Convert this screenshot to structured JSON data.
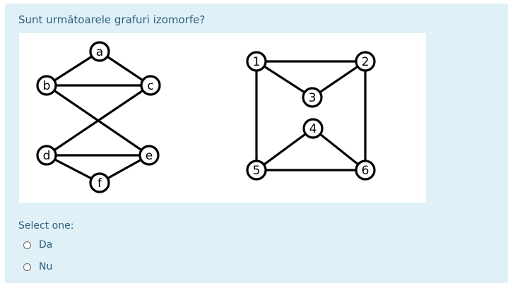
{
  "question": {
    "text": "Sunt următoarele grafuri izomorfe?"
  },
  "figure": {
    "graph_left": {
      "nodes": [
        "a",
        "b",
        "c",
        "d",
        "e",
        "f"
      ],
      "edges": [
        [
          "a",
          "b"
        ],
        [
          "a",
          "c"
        ],
        [
          "b",
          "c"
        ],
        [
          "b",
          "e"
        ],
        [
          "c",
          "d"
        ],
        [
          "d",
          "e"
        ],
        [
          "d",
          "f"
        ],
        [
          "e",
          "f"
        ]
      ]
    },
    "graph_right": {
      "nodes": [
        "1",
        "2",
        "3",
        "4",
        "5",
        "6"
      ],
      "edges": [
        [
          "1",
          "2"
        ],
        [
          "1",
          "3"
        ],
        [
          "2",
          "3"
        ],
        [
          "1",
          "5"
        ],
        [
          "2",
          "6"
        ],
        [
          "4",
          "5"
        ],
        [
          "4",
          "6"
        ],
        [
          "5",
          "6"
        ]
      ]
    }
  },
  "answer": {
    "select_label": "Select one:",
    "options": [
      {
        "label": "Da",
        "selected": false
      },
      {
        "label": "Nu",
        "selected": false
      }
    ]
  },
  "colors": {
    "card_background": "#e0f0f7",
    "text": "#2b5f7c"
  }
}
